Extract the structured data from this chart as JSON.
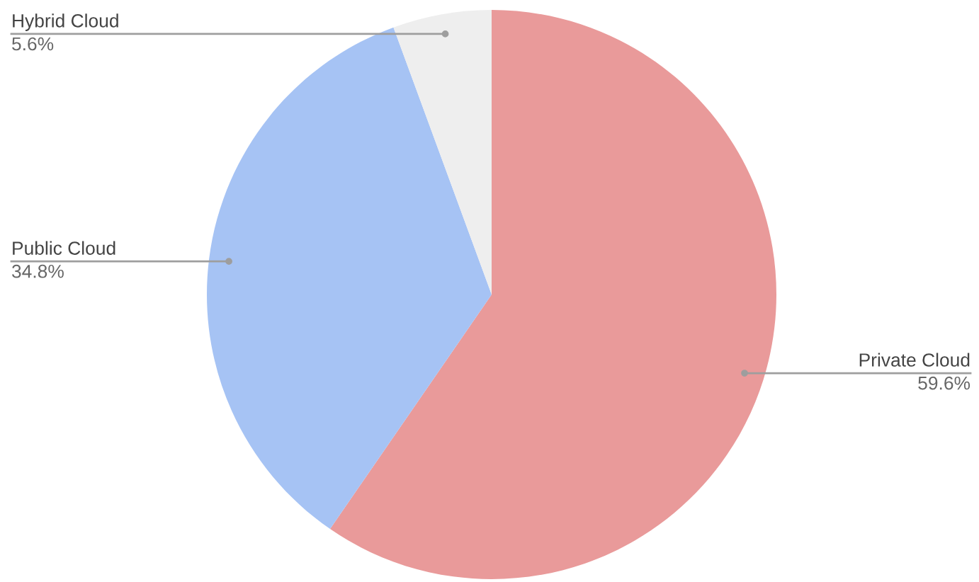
{
  "chart_data": {
    "type": "pie",
    "categories": [
      "Private Cloud",
      "Public Cloud",
      "Hybrid Cloud"
    ],
    "values": [
      59.6,
      34.8,
      5.6
    ],
    "value_labels": [
      "59.6%",
      "34.8%",
      "5.6%"
    ],
    "colors": [
      "#e99a9a",
      "#a6c3f4",
      "#eeeeee"
    ]
  }
}
